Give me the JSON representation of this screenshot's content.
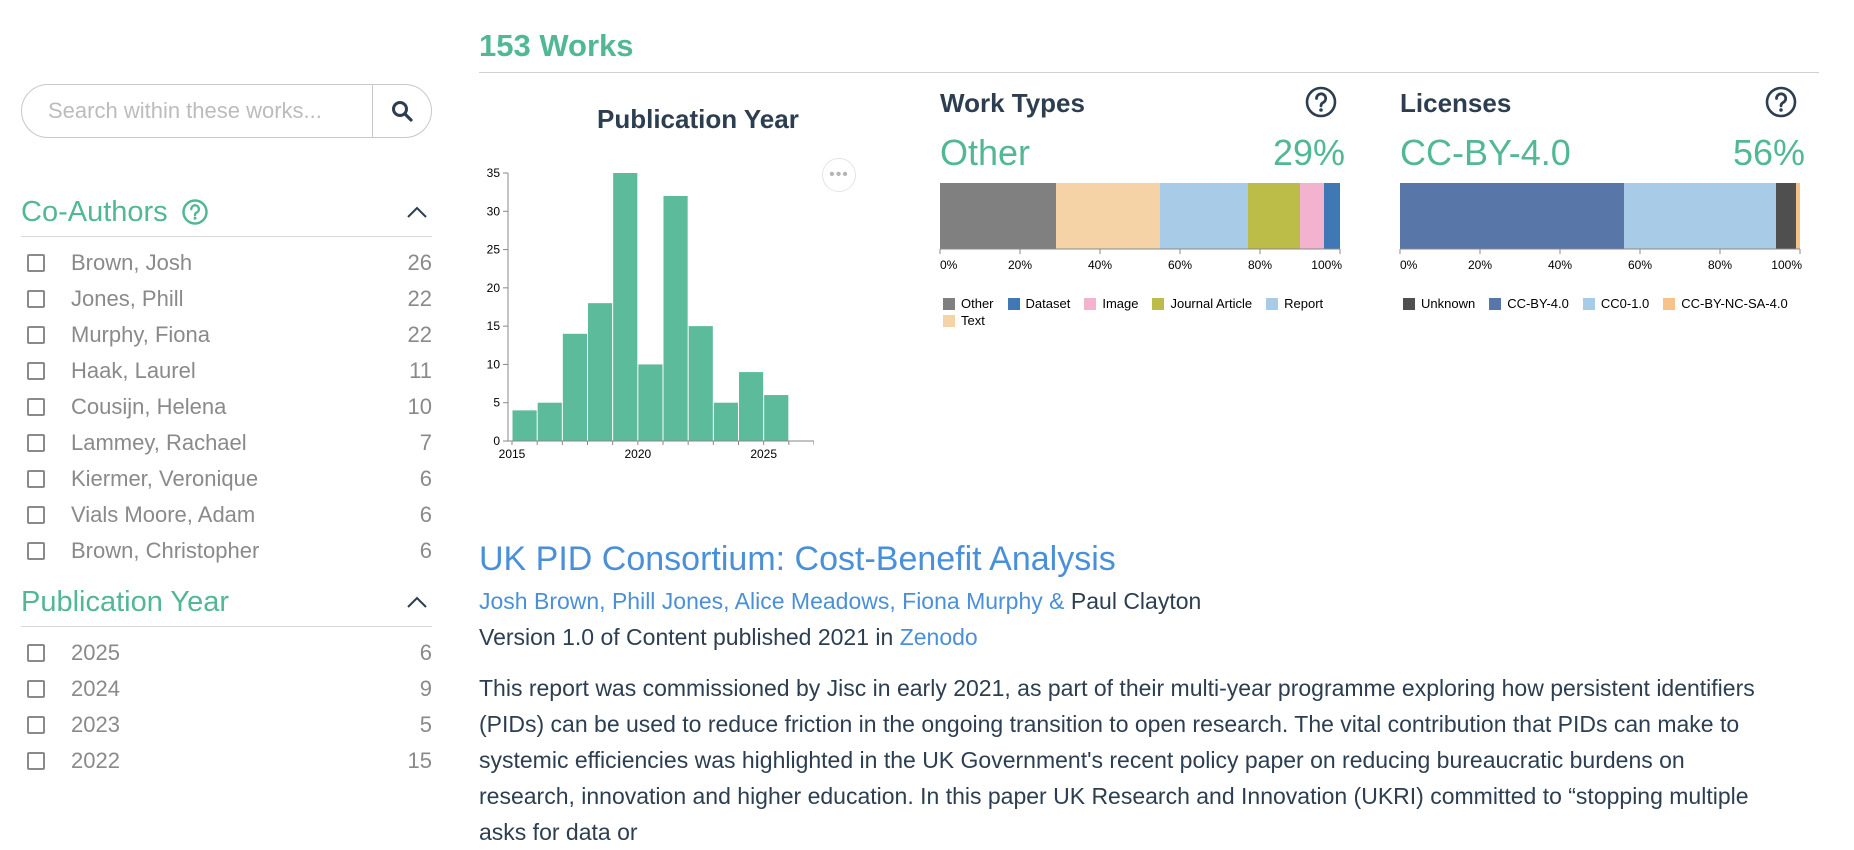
{
  "search": {
    "placeholder": "Search within these works..."
  },
  "facets": {
    "coauthors": {
      "title": "Co-Authors",
      "items": [
        {
          "label": "Brown, Josh",
          "count": "26"
        },
        {
          "label": "Jones, Phill",
          "count": "22"
        },
        {
          "label": "Murphy, Fiona",
          "count": "22"
        },
        {
          "label": "Haak, Laurel",
          "count": "11"
        },
        {
          "label": "Cousijn, Helena",
          "count": "10"
        },
        {
          "label": "Lammey, Rachael",
          "count": "7"
        },
        {
          "label": "Kiermer, Veronique",
          "count": "6"
        },
        {
          "label": "Vials Moore, Adam",
          "count": "6"
        },
        {
          "label": "Brown, Christopher",
          "count": "6"
        }
      ]
    },
    "pubyear": {
      "title": "Publication Year",
      "items": [
        {
          "label": "2025",
          "count": "6"
        },
        {
          "label": "2024",
          "count": "9"
        },
        {
          "label": "2023",
          "count": "5"
        },
        {
          "label": "2022",
          "count": "15"
        }
      ]
    }
  },
  "works_count": "153 Works",
  "colors": {
    "green": "#5bbb9b",
    "accent": "#52b795",
    "link": "#4a90d9"
  },
  "chart_data": [
    {
      "type": "bar",
      "title": "Publication Year",
      "x": [
        2015,
        2016,
        2017,
        2018,
        2019,
        2020,
        2021,
        2022,
        2023,
        2024,
        2025
      ],
      "values": [
        4,
        5,
        14,
        18,
        35,
        10,
        32,
        15,
        5,
        9,
        6
      ],
      "xlim": [
        2015,
        2027
      ],
      "ylim": [
        0,
        35
      ],
      "yticks": [
        0,
        5,
        10,
        15,
        20,
        25,
        30,
        35
      ],
      "xticks": [
        2015,
        2020,
        2025
      ]
    },
    {
      "type": "bar",
      "title": "Work Types",
      "headline_label": "Other",
      "headline_value": "29%",
      "stacked": true,
      "series": [
        {
          "name": "Other",
          "value": 29,
          "color": "#808080"
        },
        {
          "name": "Text",
          "value": 26,
          "color": "#f5d3a6"
        },
        {
          "name": "Report",
          "value": 22,
          "color": "#a8cbe8"
        },
        {
          "name": "Journal Article",
          "value": 13,
          "color": "#bcbd48"
        },
        {
          "name": "Image",
          "value": 6,
          "color": "#f3b3cf"
        },
        {
          "name": "Dataset",
          "value": 4,
          "color": "#3f78b4"
        }
      ],
      "legend_order": [
        "Other",
        "Dataset",
        "Image",
        "Journal Article",
        "Report",
        "Text"
      ],
      "xticks": [
        "0%",
        "20%",
        "40%",
        "60%",
        "80%",
        "100%"
      ]
    },
    {
      "type": "bar",
      "title": "Licenses",
      "headline_label": "CC-BY-4.0",
      "headline_value": "56%",
      "stacked": true,
      "series": [
        {
          "name": "CC-BY-4.0",
          "value": 56,
          "color": "#5876a7"
        },
        {
          "name": "CC0-1.0",
          "value": 38,
          "color": "#a8cbe8"
        },
        {
          "name": "Unknown",
          "value": 5,
          "color": "#4f4f4f"
        },
        {
          "name": "CC-BY-NC-SA-4.0",
          "value": 1,
          "color": "#f7c18a"
        }
      ],
      "legend_order": [
        "Unknown",
        "CC-BY-4.0",
        "CC0-1.0",
        "CC-BY-NC-SA-4.0"
      ],
      "xticks": [
        "0%",
        "20%",
        "40%",
        "60%",
        "80%",
        "100%"
      ]
    }
  ],
  "result": {
    "title": "UK PID Consortium: Cost-Benefit Analysis",
    "authors_linked": "Josh Brown, Phill Jones, Alice Meadows, Fiona Murphy &",
    "author_last": "Paul Clayton",
    "version_text": "Version 1.0 of Content published 2021 in",
    "publisher": "Zenodo",
    "abstract": "This report was commissioned by Jisc in early 2021, as part of their multi-year programme exploring how persistent identifiers (PIDs) can be used to reduce friction in the ongoing transition to open research. The vital contribution that PIDs can make to systemic efficiencies was highlighted in the UK Government's recent policy paper on reducing bureaucratic burdens on research, innovation and higher education. In this paper UK Research and Innovation (UKRI) committed to “stopping multiple asks for data or"
  }
}
